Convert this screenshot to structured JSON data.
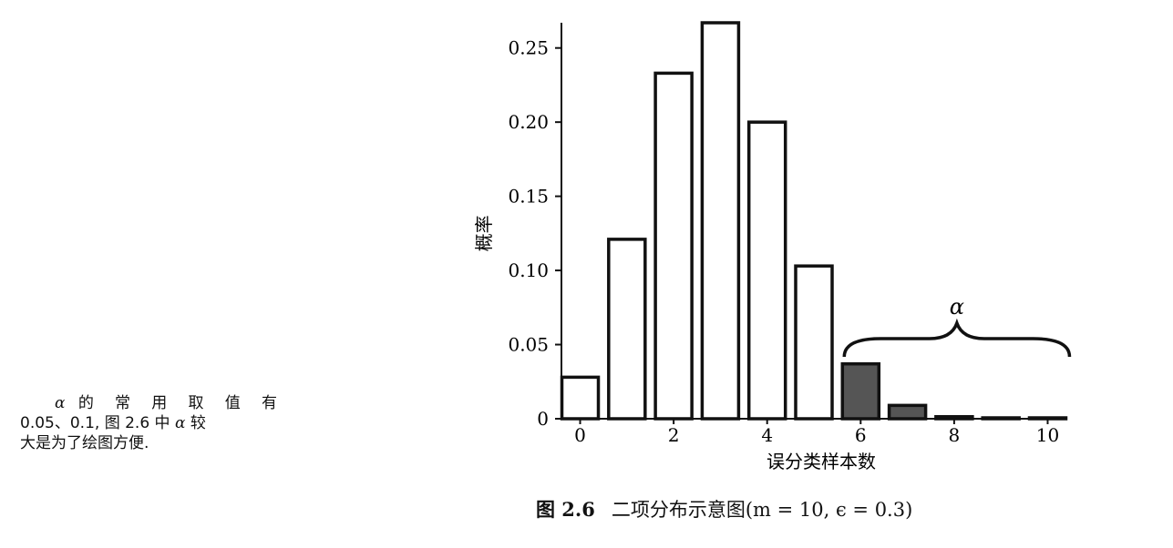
{
  "margin_note": {
    "line1_symbol": "α",
    "line1_text": "的 常 用 取 值 有",
    "line2_text": "0.05、0.1, 图 2.6 中",
    "line2_symbol": "α",
    "line2_tail": "较",
    "line3_text": "大是为了绘图方便."
  },
  "caption": {
    "label": "图 2.6",
    "text": "二项分布示意图",
    "formula": "(m = 10, ϵ = 0.3)"
  },
  "chart_data": {
    "type": "bar",
    "title": "",
    "xlabel": "误分类样本数",
    "ylabel": "概率",
    "ylim": [
      0,
      0.267
    ],
    "xlim": [
      -0.4,
      10.4
    ],
    "yticks": [
      0,
      0.05,
      0.1,
      0.15,
      0.2,
      0.25
    ],
    "ytick_labels": [
      "0",
      "0.05",
      "0.10",
      "0.15",
      "0.20",
      "0.25"
    ],
    "xticks": [
      0,
      2,
      4,
      6,
      8,
      10
    ],
    "xtick_labels": [
      "0",
      "2",
      "4",
      "6",
      "8",
      "10"
    ],
    "categories": [
      0,
      1,
      2,
      3,
      4,
      5,
      6,
      7,
      8,
      9,
      10
    ],
    "values": [
      0.028,
      0.121,
      0.233,
      0.267,
      0.2,
      0.103,
      0.037,
      0.009,
      0.0014,
      0.0001,
      1e-05
    ],
    "highlighted_from": 6,
    "colors": {
      "bar_fill": "#ffffff",
      "highlight_fill": "#555555",
      "stroke": "#111111"
    },
    "annotation": {
      "label": "α",
      "brace_from": 6,
      "brace_to": 10
    }
  }
}
